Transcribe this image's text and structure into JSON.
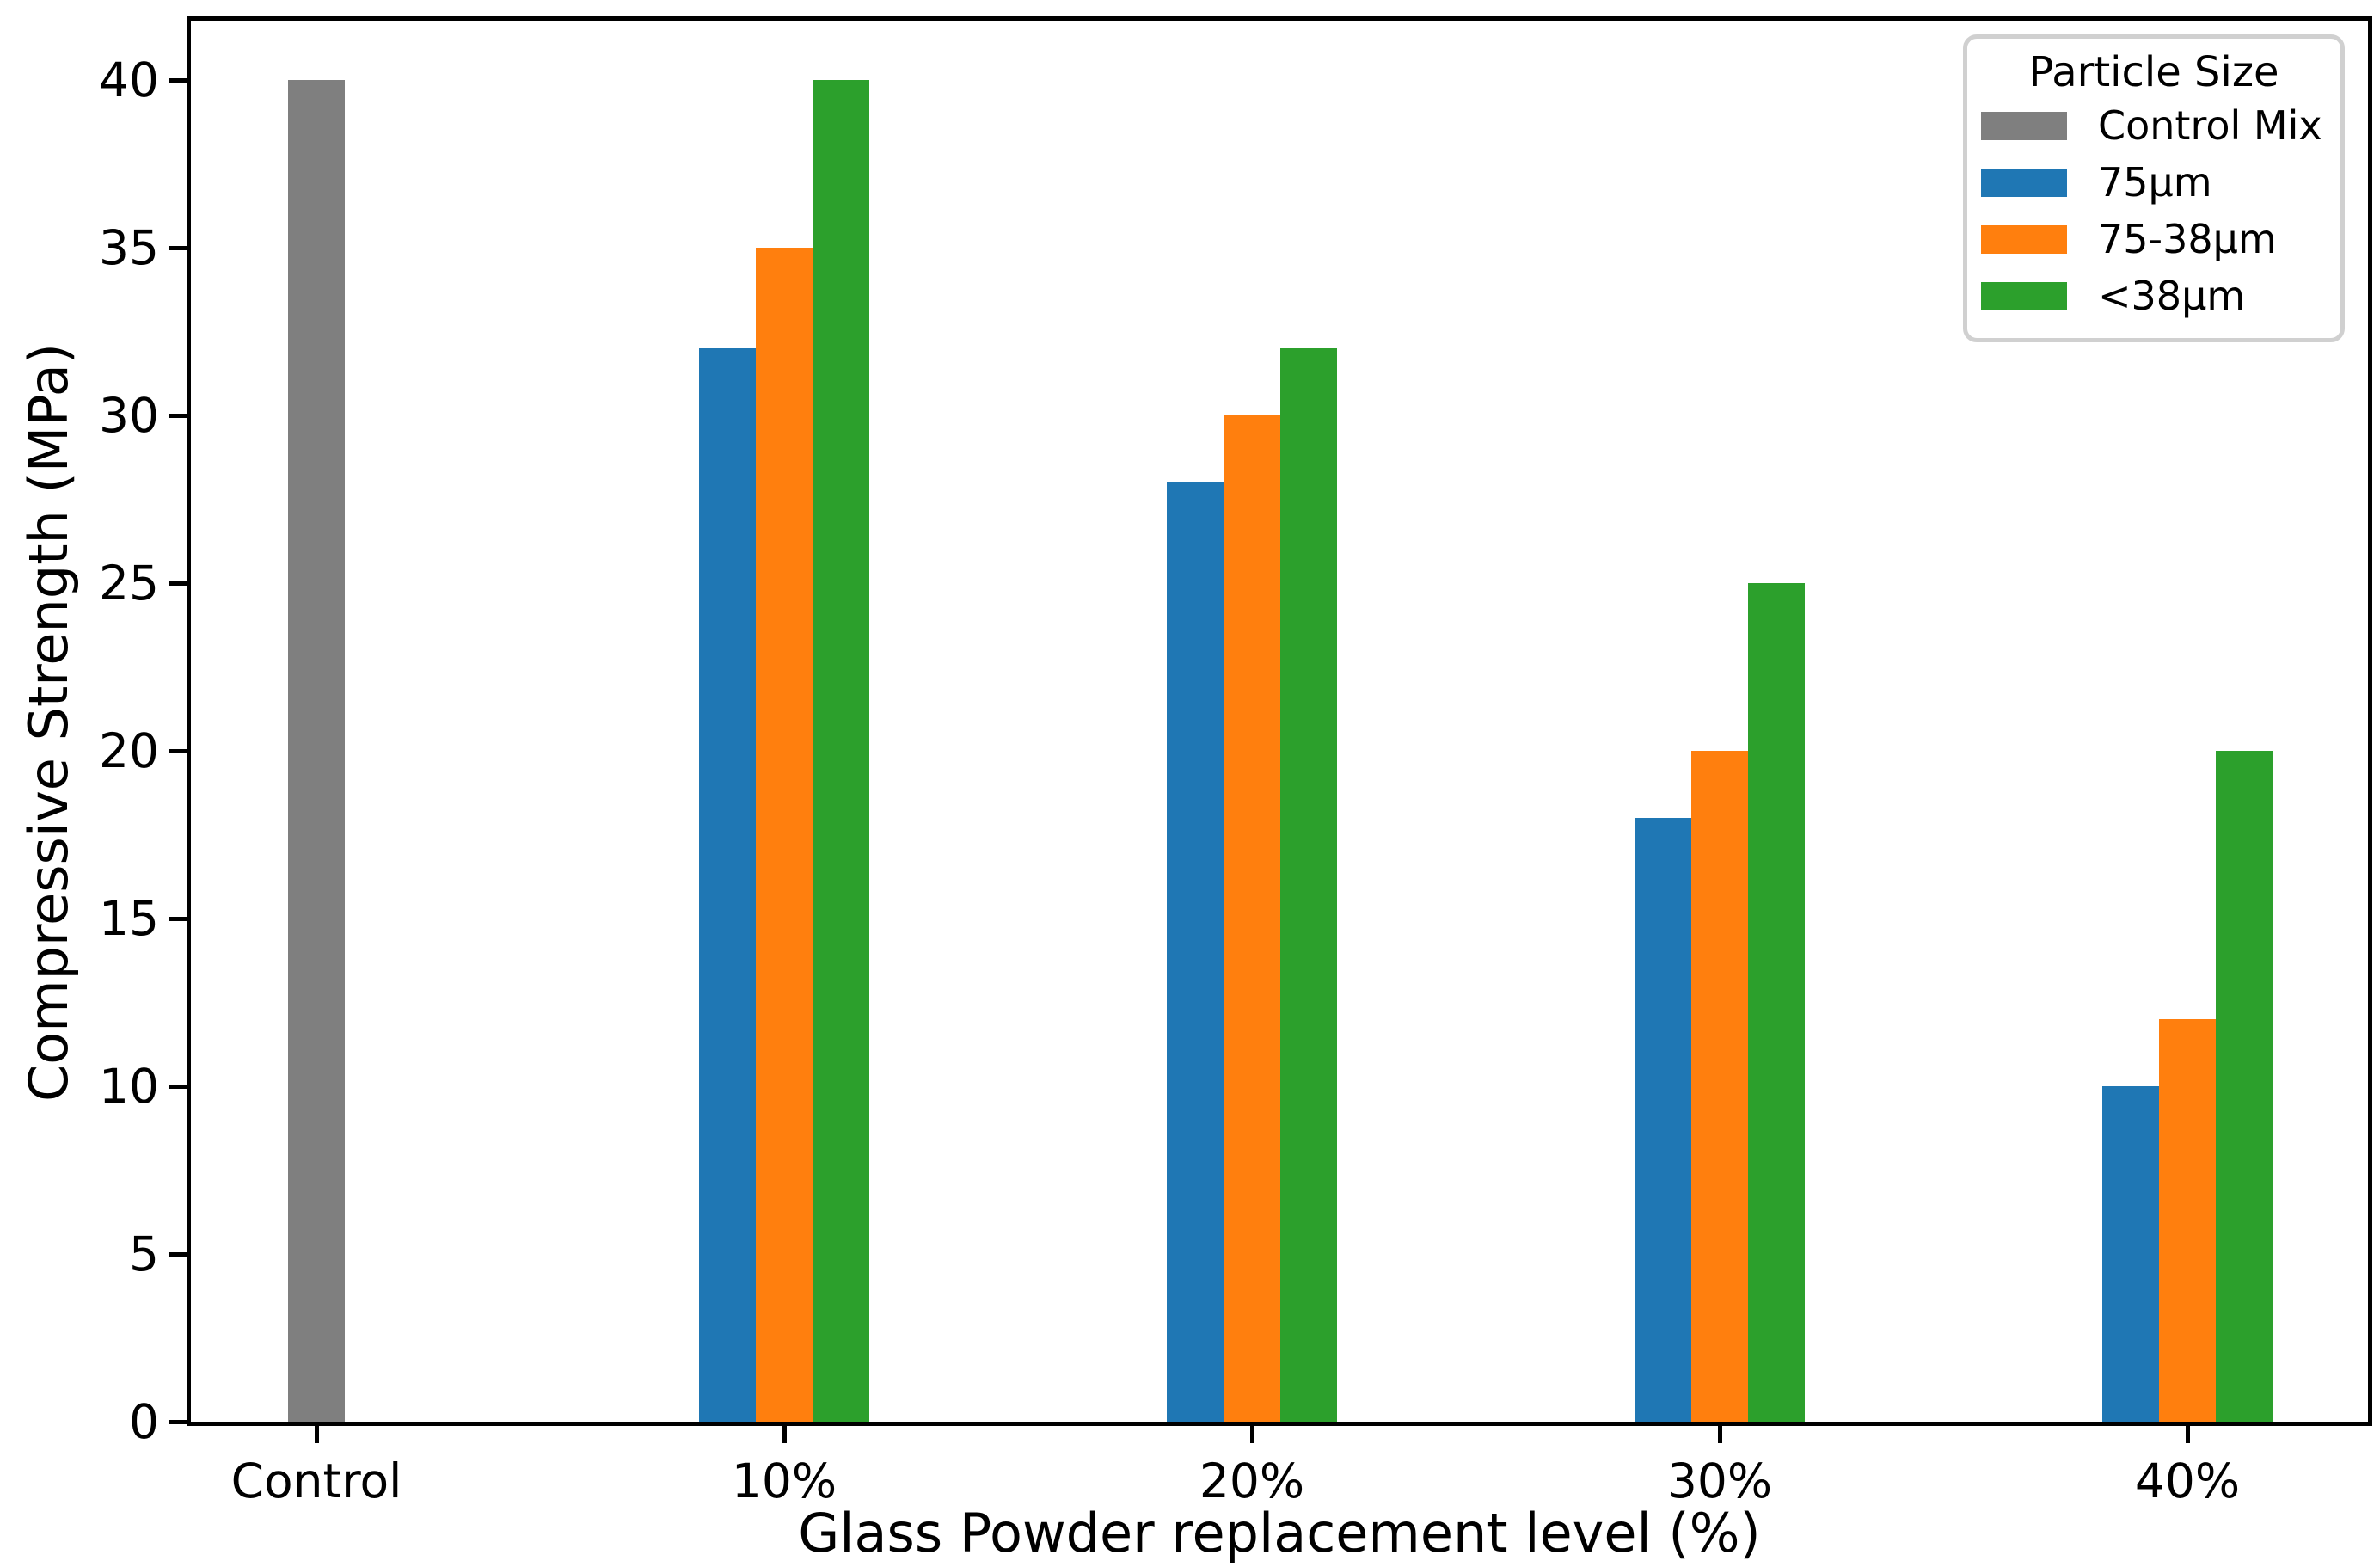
{
  "chart_data": {
    "type": "bar",
    "title": "",
    "xlabel": "Glass Powder replacement level (%)",
    "ylabel": "Compressive Strength (MPa)",
    "categories": [
      "Control",
      "10%",
      "20%",
      "30%",
      "40%"
    ],
    "y_ticks": [
      0,
      5,
      10,
      15,
      20,
      25,
      30,
      35,
      40
    ],
    "ylim": [
      0,
      41.8
    ],
    "grid": false,
    "legend": {
      "title": "Particle Size",
      "position": "top-right"
    },
    "series": [
      {
        "name": "Control Mix",
        "color": "#7f7f7f",
        "values": [
          40,
          null,
          null,
          null,
          null
        ]
      },
      {
        "name": "75µm",
        "color": "#1f77b4",
        "values": [
          null,
          32,
          28,
          18,
          10
        ]
      },
      {
        "name": "75-38µm",
        "color": "#ff7f0e",
        "values": [
          null,
          35,
          30,
          20,
          12
        ]
      },
      {
        "name": "<38µm",
        "color": "#2ca02c",
        "values": [
          null,
          40,
          32,
          25,
          20
        ]
      }
    ]
  },
  "colors": {
    "spine": "#000000",
    "legend_border": "#d0d0d0",
    "background": "#ffffff"
  }
}
